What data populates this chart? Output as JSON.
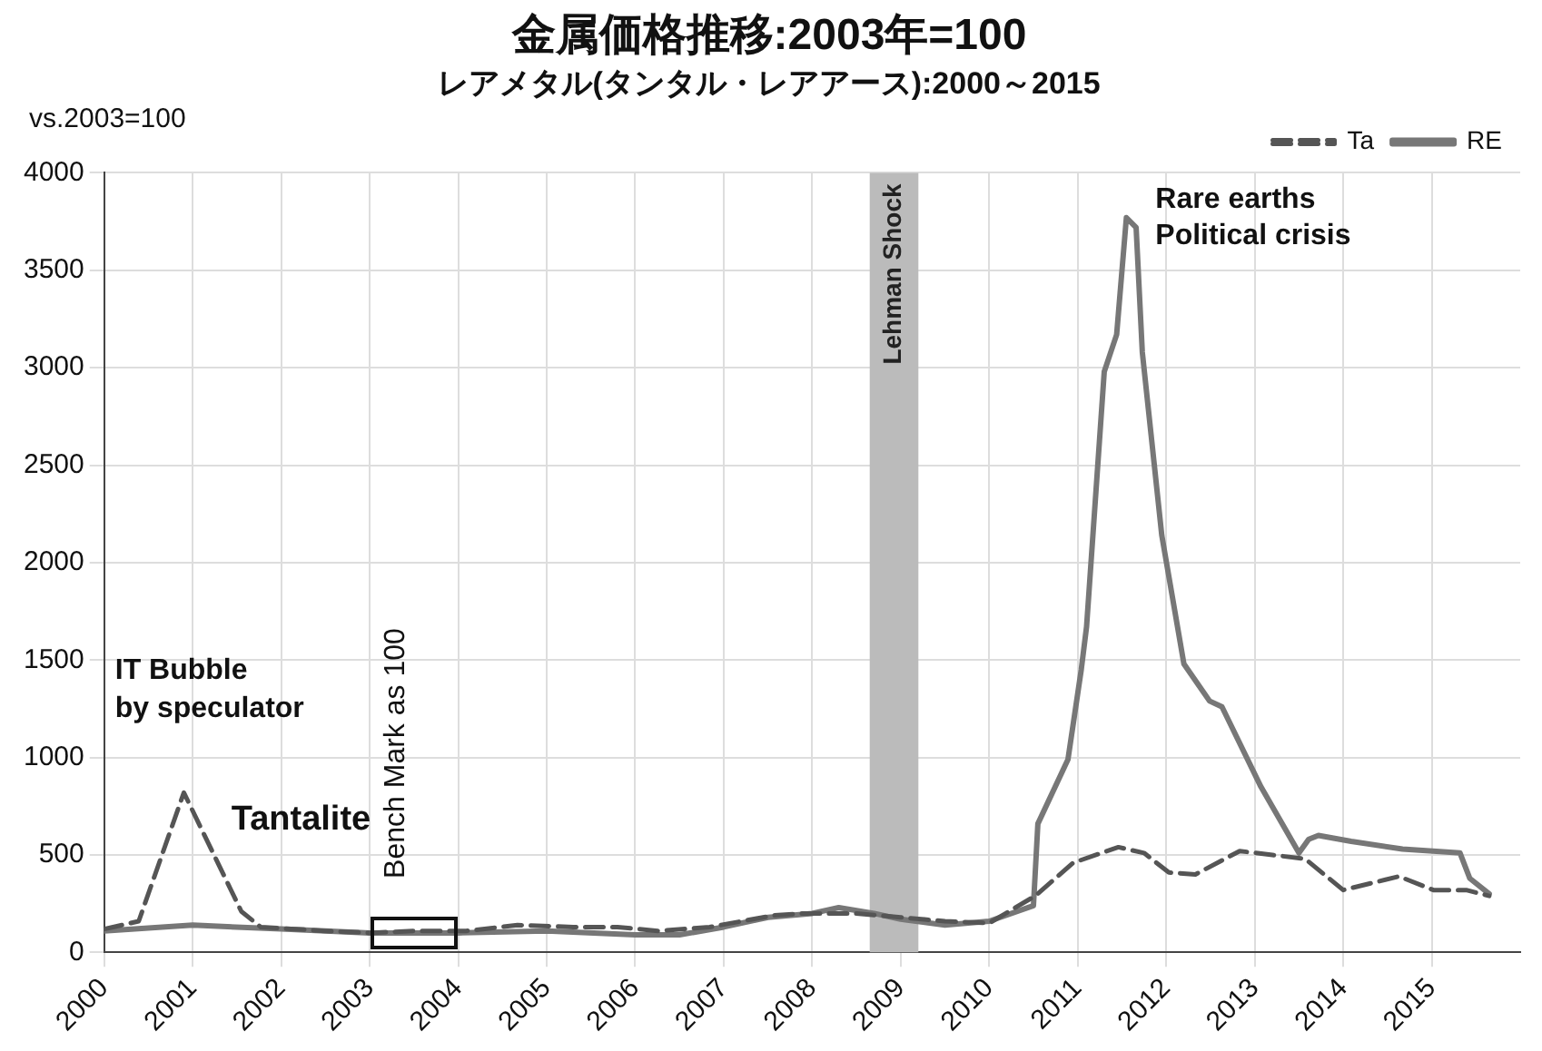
{
  "chart_data": {
    "type": "line",
    "title": "金属価格推移:2003年=100",
    "subtitle": "レアメタル(タンタル・レアアース):2000～2015",
    "ylabel": "vs.2003=100",
    "xlim": [
      2000,
      2016
    ],
    "xticks": [
      2000,
      2001,
      2002,
      2003,
      2004,
      2005,
      2006,
      2007,
      2008,
      2009,
      2010,
      2011,
      2012,
      2013,
      2014,
      2015
    ],
    "ylim": [
      0,
      4000
    ],
    "yticks": [
      0,
      500,
      1000,
      1500,
      2000,
      2500,
      3000,
      3500,
      4000
    ],
    "grid": true,
    "legend": "top right",
    "marker": "none",
    "series": [
      {
        "name": "Ta",
        "color": "#555555",
        "line_style": "dashed",
        "x": [
          2000,
          2000.1,
          2000.39,
          2000.9,
          2001.55,
          2001.77,
          2002.49,
          2003,
          2003.5,
          2004.09,
          2004.67,
          2005.3,
          2005.8,
          2006.26,
          2006.84,
          2007.57,
          2007.9,
          2008.5,
          2009,
          2009.5,
          2010,
          2010.52,
          2010.95,
          2011.46,
          2011.75,
          2012.03,
          2012.33,
          2012.83,
          2013.2,
          2013.57,
          2014,
          2014.63,
          2015.02,
          2015.39,
          2015.65
        ],
        "values": [
          120,
          130,
          160,
          820,
          210,
          130,
          110,
          100,
          110,
          110,
          140,
          130,
          130,
          110,
          130,
          190,
          200,
          200,
          180,
          160,
          150,
          290,
          460,
          540,
          510,
          410,
          400,
          520,
          500,
          480,
          320,
          390,
          320,
          320,
          290
        ]
      },
      {
        "name": "RE",
        "color": "#777777",
        "line_style": "solid",
        "x": [
          2000,
          2001,
          2002,
          2003,
          2004,
          2005,
          2006,
          2006.5,
          2007,
          2007.5,
          2008,
          2008.3,
          2008.7,
          2009,
          2009.5,
          2010,
          2010.5,
          2010.55,
          2010.89,
          2011.04,
          2011.1,
          2011.3,
          2011.44,
          2011.55,
          2011.66,
          2011.73,
          2011.95,
          2012.2,
          2012.49,
          2012.63,
          2013.07,
          2013.5,
          2013.61,
          2013.72,
          2014.09,
          2014.67,
          2015.32,
          2015.43,
          2015.65
        ],
        "values": [
          110,
          140,
          120,
          100,
          100,
          110,
          90,
          90,
          130,
          180,
          200,
          230,
          200,
          170,
          140,
          160,
          240,
          660,
          990,
          1450,
          1670,
          2980,
          3170,
          3770,
          3720,
          3080,
          2140,
          1480,
          1290,
          1260,
          850,
          510,
          580,
          600,
          570,
          530,
          510,
          380,
          300
        ]
      }
    ],
    "bands": [
      {
        "axis": "x",
        "from": 2008.65,
        "to": 2009.2,
        "label": "Lehman Shock",
        "color": "#bbbbbb"
      }
    ],
    "annotations": [
      "IT Bubble\nby speculator",
      "Tantalite",
      {
        "text": "Bench Mark as 100",
        "x": 2003.5,
        "y": 100
      },
      {
        "text": "Rare earths\nPolitical crisis",
        "x": 2011.55,
        "y": 3767
      }
    ]
  }
}
